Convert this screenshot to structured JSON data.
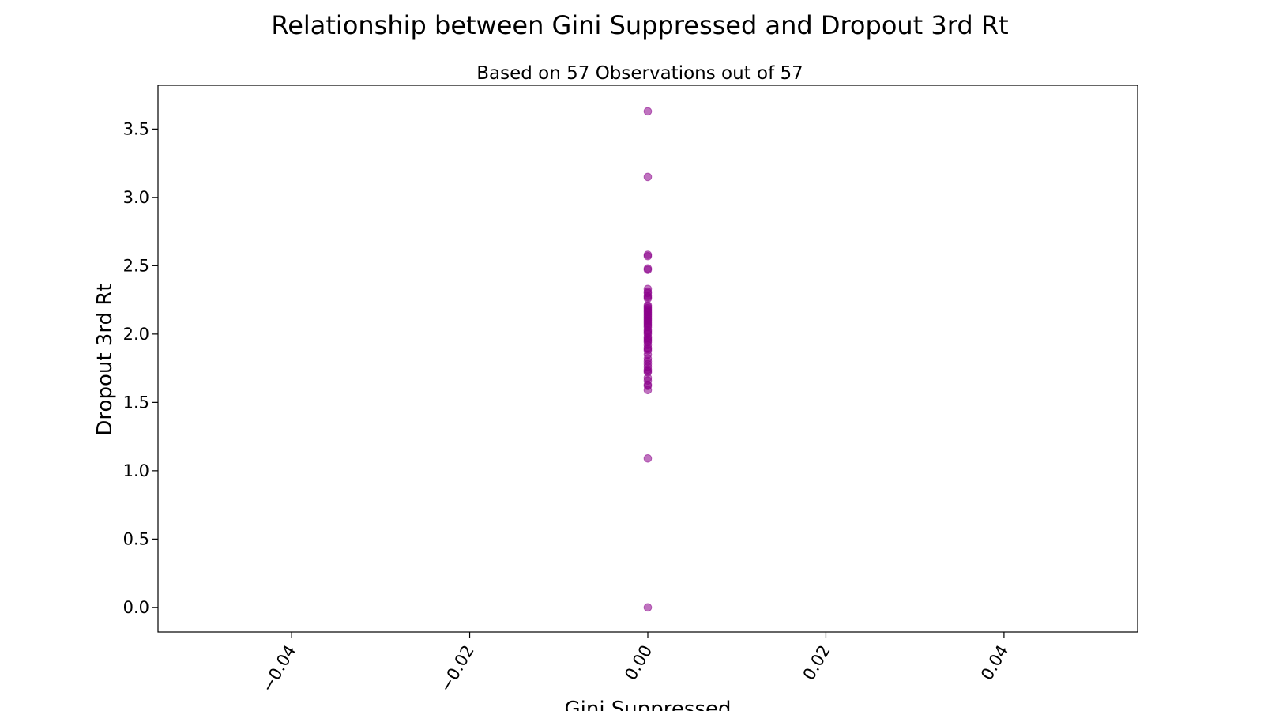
{
  "chart_data": {
    "type": "scatter",
    "title": "Relationship between Gini Suppressed and Dropout 3rd Rt",
    "subtitle": "Based on 57 Observations out of 57",
    "xlabel": "Gini Suppressed",
    "ylabel": "Dropout 3rd Rt",
    "xlim": [
      -0.055,
      0.055
    ],
    "ylim": [
      -0.18,
      3.82
    ],
    "xticks": [
      -0.04,
      -0.02,
      0.0,
      0.02,
      0.04
    ],
    "xtick_labels": [
      "−0.04",
      "−0.02",
      "0.00",
      "0.02",
      "0.04"
    ],
    "yticks": [
      0.0,
      0.5,
      1.0,
      1.5,
      2.0,
      2.5,
      3.0,
      3.5
    ],
    "ytick_labels": [
      "0.0",
      "0.5",
      "1.0",
      "1.5",
      "2.0",
      "2.5",
      "3.0",
      "3.5"
    ],
    "grid": false,
    "point_color": "#8b008b",
    "point_alpha": 0.55,
    "x": [
      0,
      0,
      0,
      0,
      0,
      0,
      0,
      0,
      0,
      0,
      0,
      0,
      0,
      0,
      0,
      0,
      0,
      0,
      0,
      0,
      0,
      0,
      0,
      0,
      0,
      0,
      0,
      0,
      0,
      0,
      0,
      0,
      0,
      0,
      0,
      0,
      0,
      0,
      0,
      0,
      0,
      0,
      0,
      0,
      0,
      0,
      0,
      0,
      0,
      0,
      0,
      0,
      0,
      0,
      0,
      0,
      0
    ],
    "y": [
      0.0,
      1.09,
      1.59,
      1.62,
      1.63,
      1.66,
      1.68,
      1.72,
      1.73,
      1.74,
      1.76,
      1.78,
      1.8,
      1.82,
      1.85,
      1.88,
      1.89,
      1.9,
      1.92,
      1.94,
      1.95,
      1.96,
      1.97,
      1.98,
      2.0,
      2.01,
      2.02,
      2.03,
      2.05,
      2.06,
      2.07,
      2.08,
      2.09,
      2.1,
      2.11,
      2.12,
      2.13,
      2.14,
      2.15,
      2.16,
      2.17,
      2.18,
      2.19,
      2.2,
      2.21,
      2.26,
      2.27,
      2.28,
      2.3,
      2.31,
      2.33,
      2.47,
      2.48,
      2.57,
      2.58,
      3.15,
      3.63
    ]
  }
}
